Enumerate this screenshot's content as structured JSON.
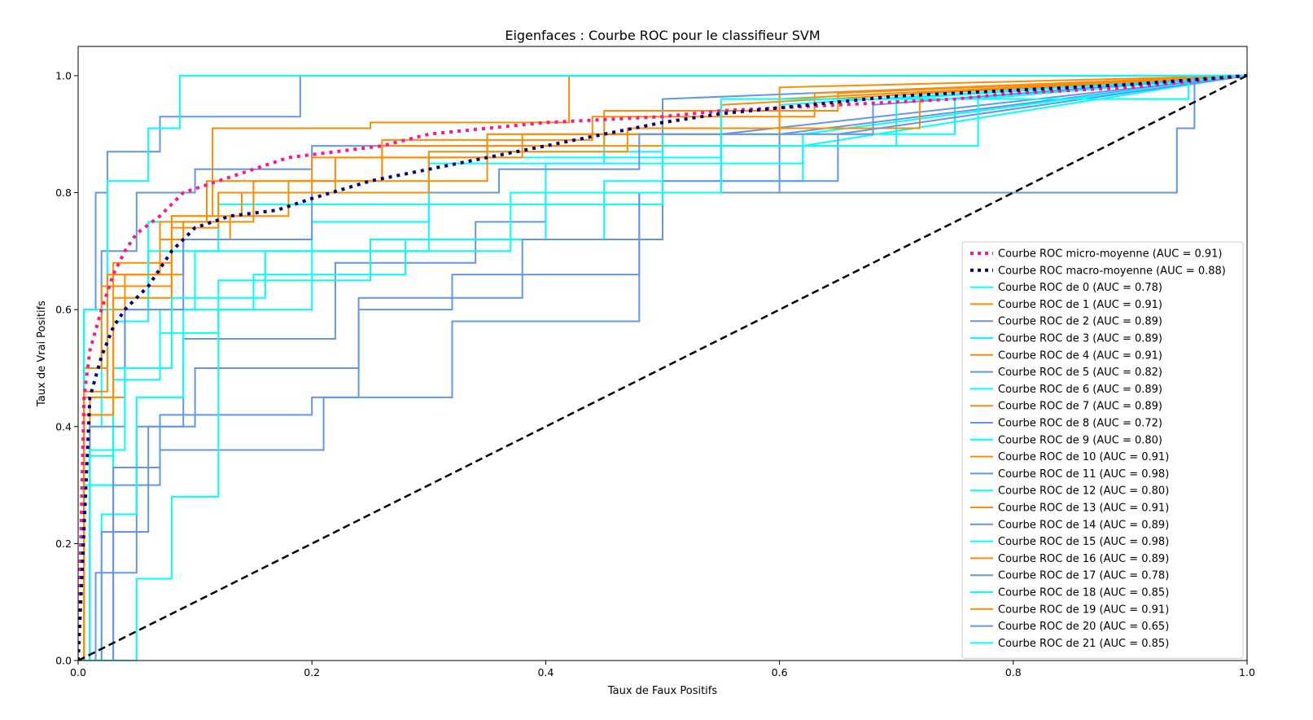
{
  "chart_data": {
    "type": "line",
    "title": "Eigenfaces : Courbe ROC pour le classifieur SVM",
    "xlabel": "Taux de Faux Positifs",
    "ylabel": "Taux de Vrai Positifs",
    "xlim": [
      0.0,
      1.0
    ],
    "ylim": [
      0.0,
      1.05
    ],
    "xticks": [
      "0.0",
      "0.2",
      "0.4",
      "0.6",
      "0.8",
      "1.0"
    ],
    "yticks": [
      "0.0",
      "0.2",
      "0.4",
      "0.6",
      "0.8",
      "1.0"
    ],
    "grid": false,
    "legend_position": "center-right",
    "baseline": {
      "x": [
        0,
        1
      ],
      "y": [
        0,
        1
      ],
      "color": "#000000"
    },
    "colors": {
      "micro": "#ff1493",
      "macro": "#000080",
      "cycle": [
        "#00ffff",
        "#ff8c00",
        "#6495ed"
      ]
    },
    "series": [
      {
        "name": "Courbe ROC micro-moyenne (AUC = 0.91)",
        "color": "#ff1493",
        "style": "dotted",
        "x": [
          0,
          0.005,
          0.01,
          0.02,
          0.03,
          0.04,
          0.05,
          0.07,
          0.09,
          0.12,
          0.15,
          0.18,
          0.22,
          0.26,
          0.3,
          0.35,
          0.4,
          0.45,
          0.5,
          0.55,
          0.6,
          0.65,
          0.7,
          0.75,
          0.8,
          0.85,
          0.9,
          0.95,
          1.0
        ],
        "y": [
          0,
          0.45,
          0.53,
          0.6,
          0.66,
          0.7,
          0.73,
          0.76,
          0.8,
          0.82,
          0.84,
          0.86,
          0.87,
          0.88,
          0.9,
          0.91,
          0.92,
          0.925,
          0.93,
          0.94,
          0.945,
          0.95,
          0.955,
          0.96,
          0.97,
          0.975,
          0.98,
          0.99,
          1.0
        ]
      },
      {
        "name": "Courbe ROC macro-moyenne (AUC = 0.88)",
        "color": "#000080",
        "style": "dotted",
        "x": [
          0,
          0.01,
          0.02,
          0.03,
          0.04,
          0.06,
          0.08,
          0.1,
          0.13,
          0.17,
          0.2,
          0.25,
          0.3,
          0.35,
          0.4,
          0.45,
          0.5,
          0.55,
          0.6,
          0.65,
          0.7,
          0.8,
          0.9,
          1.0
        ],
        "y": [
          0,
          0.45,
          0.52,
          0.57,
          0.6,
          0.64,
          0.7,
          0.74,
          0.76,
          0.77,
          0.79,
          0.82,
          0.84,
          0.86,
          0.88,
          0.9,
          0.92,
          0.935,
          0.945,
          0.955,
          0.965,
          0.975,
          0.985,
          1.0
        ]
      },
      {
        "name": "Courbe ROC de 0 (AUC = 0.78)",
        "color": "#00ffff",
        "x": [
          0,
          0.01,
          0.01,
          0.03,
          0.03,
          0.07,
          0.07,
          0.1,
          0.1,
          0.2,
          0.2,
          0.3,
          0.3,
          0.45,
          0.45,
          0.6,
          0.6,
          1
        ],
        "y": [
          0,
          0,
          0.3,
          0.3,
          0.5,
          0.5,
          0.6,
          0.6,
          0.7,
          0.7,
          0.75,
          0.75,
          0.85,
          0.85,
          0.9,
          0.9,
          0.95,
          1
        ]
      },
      {
        "name": "Courbe ROC de 1 (AUC = 0.91)",
        "color": "#ff8c00",
        "x": [
          0,
          0.005,
          0.005,
          0.03,
          0.03,
          0.08,
          0.08,
          0.115,
          0.115,
          0.25,
          0.25,
          0.42,
          0.42,
          1
        ],
        "y": [
          0,
          0,
          0.45,
          0.45,
          0.68,
          0.68,
          0.76,
          0.76,
          0.91,
          0.91,
          0.92,
          0.92,
          1.0,
          1
        ]
      },
      {
        "name": "Courbe ROC de 2 (AUC = 0.89)",
        "color": "#6495ed",
        "x": [
          0,
          0.005,
          0.005,
          0.02,
          0.02,
          0.05,
          0.05,
          0.1,
          0.1,
          0.2,
          0.2,
          0.35,
          0.35,
          0.5,
          0.5,
          1
        ],
        "y": [
          0,
          0,
          0.5,
          0.5,
          0.7,
          0.7,
          0.8,
          0.8,
          0.84,
          0.84,
          0.88,
          0.88,
          0.9,
          0.9,
          0.96,
          1
        ]
      },
      {
        "name": "Courbe ROC de 3 (AUC = 0.89)",
        "color": "#00ffff",
        "x": [
          0,
          0.01,
          0.01,
          0.02,
          0.02,
          0.06,
          0.06,
          0.15,
          0.15,
          0.3,
          0.3,
          0.5,
          0.5,
          0.75,
          0.75,
          1
        ],
        "y": [
          0,
          0,
          0.4,
          0.4,
          0.6,
          0.6,
          0.75,
          0.75,
          0.8,
          0.8,
          0.87,
          0.87,
          0.9,
          0.9,
          0.96,
          1
        ]
      },
      {
        "name": "Courbe ROC de 4 (AUC = 0.91)",
        "color": "#ff8c00",
        "x": [
          0,
          0.005,
          0.005,
          0.025,
          0.025,
          0.07,
          0.07,
          0.12,
          0.12,
          0.2,
          0.2,
          0.35,
          0.35,
          0.6,
          0.6,
          1
        ],
        "y": [
          0,
          0,
          0.5,
          0.5,
          0.66,
          0.66,
          0.72,
          0.72,
          0.8,
          0.8,
          0.86,
          0.86,
          0.9,
          0.9,
          0.98,
          1
        ]
      },
      {
        "name": "Courbe ROC de 5 (AUC = 0.82)",
        "color": "#6495ed",
        "x": [
          0,
          0.015,
          0.015,
          0.05,
          0.05,
          0.09,
          0.09,
          0.22,
          0.22,
          0.34,
          0.34,
          0.4,
          0.4,
          0.55,
          0.55,
          1
        ],
        "y": [
          0,
          0,
          0.15,
          0.15,
          0.4,
          0.4,
          0.55,
          0.55,
          0.68,
          0.68,
          0.75,
          0.75,
          0.8,
          0.8,
          0.9,
          1
        ]
      },
      {
        "name": "Courbe ROC de 6 (AUC = 0.89)",
        "color": "#00ffff",
        "x": [
          0,
          0.01,
          0.01,
          0.03,
          0.03,
          0.06,
          0.06,
          0.12,
          0.12,
          0.3,
          0.3,
          0.55,
          0.55,
          0.7,
          0.7,
          1
        ],
        "y": [
          0,
          0,
          0.35,
          0.35,
          0.58,
          0.58,
          0.7,
          0.7,
          0.78,
          0.78,
          0.86,
          0.86,
          0.88,
          0.88,
          0.96,
          1
        ]
      },
      {
        "name": "Courbe ROC de 7 (AUC = 0.89)",
        "color": "#ff8c00",
        "x": [
          0,
          0.01,
          0.01,
          0.03,
          0.03,
          0.08,
          0.08,
          0.13,
          0.13,
          0.18,
          0.18,
          0.35,
          0.35,
          0.6,
          0.6,
          1
        ],
        "y": [
          0,
          0,
          0.42,
          0.42,
          0.6,
          0.6,
          0.72,
          0.72,
          0.76,
          0.76,
          0.82,
          0.82,
          0.88,
          0.88,
          0.96,
          1
        ]
      },
      {
        "name": "Courbe ROC de 8 (AUC = 0.72)",
        "color": "#6495ed",
        "x": [
          0,
          0.03,
          0.03,
          0.07,
          0.07,
          0.21,
          0.21,
          0.24,
          0.24,
          0.32,
          0.32,
          0.48,
          0.48,
          0.6,
          0.6,
          1
        ],
        "y": [
          0,
          0,
          0.3,
          0.3,
          0.36,
          0.36,
          0.45,
          0.45,
          0.6,
          0.6,
          0.66,
          0.66,
          0.8,
          0.8,
          0.9,
          1
        ]
      },
      {
        "name": "Courbe ROC de 9 (AUC = 0.80)",
        "color": "#00ffff",
        "x": [
          0,
          0.005,
          0.005,
          0.03,
          0.03,
          0.07,
          0.07,
          0.12,
          0.12,
          0.25,
          0.25,
          0.4,
          0.4,
          0.62,
          0.62,
          1
        ],
        "y": [
          0,
          0,
          0.3,
          0.3,
          0.48,
          0.48,
          0.56,
          0.56,
          0.65,
          0.65,
          0.72,
          0.72,
          0.85,
          0.85,
          0.9,
          1
        ]
      },
      {
        "name": "Courbe ROC de 10 (AUC = 0.91)",
        "color": "#ff8c00",
        "x": [
          0,
          0.01,
          0.01,
          0.04,
          0.04,
          0.09,
          0.09,
          0.15,
          0.15,
          0.26,
          0.26,
          0.45,
          0.45,
          0.65,
          0.65,
          1
        ],
        "y": [
          0,
          0,
          0.45,
          0.45,
          0.66,
          0.66,
          0.75,
          0.75,
          0.82,
          0.82,
          0.88,
          0.88,
          0.94,
          0.94,
          0.97,
          1
        ]
      },
      {
        "name": "Courbe ROC de 11 (AUC = 0.98)",
        "color": "#6495ed",
        "x": [
          0,
          0.005,
          0.005,
          0.015,
          0.015,
          0.025,
          0.025,
          0.07,
          0.07,
          0.19,
          0.19,
          1
        ],
        "y": [
          0,
          0,
          0.6,
          0.6,
          0.8,
          0.8,
          0.87,
          0.87,
          0.93,
          0.93,
          1.0,
          1
        ]
      },
      {
        "name": "Courbe ROC de 12 (AUC = 0.80)",
        "color": "#00ffff",
        "x": [
          0,
          0.02,
          0.02,
          0.05,
          0.05,
          0.09,
          0.09,
          0.15,
          0.15,
          0.28,
          0.28,
          0.45,
          0.45,
          0.62,
          0.62,
          1
        ],
        "y": [
          0,
          0,
          0.25,
          0.25,
          0.45,
          0.45,
          0.6,
          0.6,
          0.66,
          0.66,
          0.72,
          0.72,
          0.82,
          0.82,
          0.88,
          1
        ]
      },
      {
        "name": "Courbe ROC de 13 (AUC = 0.91)",
        "color": "#ff8c00",
        "x": [
          0,
          0.005,
          0.005,
          0.02,
          0.02,
          0.08,
          0.08,
          0.14,
          0.14,
          0.22,
          0.22,
          0.38,
          0.38,
          0.55,
          0.55,
          1
        ],
        "y": [
          0,
          0,
          0.5,
          0.5,
          0.64,
          0.64,
          0.76,
          0.76,
          0.8,
          0.8,
          0.86,
          0.86,
          0.9,
          0.9,
          0.95,
          1
        ]
      },
      {
        "name": "Courbe ROC de 14 (AUC = 0.89)",
        "color": "#6495ed",
        "x": [
          0,
          0.01,
          0.01,
          0.04,
          0.04,
          0.09,
          0.09,
          0.2,
          0.2,
          0.36,
          0.36,
          0.48,
          0.48,
          0.68,
          0.68,
          1
        ],
        "y": [
          0,
          0,
          0.4,
          0.4,
          0.6,
          0.6,
          0.72,
          0.72,
          0.8,
          0.8,
          0.84,
          0.84,
          0.9,
          0.9,
          0.95,
          1
        ]
      },
      {
        "name": "Courbe ROC de 15 (AUC = 0.98)",
        "color": "#00ffff",
        "x": [
          0,
          0.005,
          0.005,
          0.025,
          0.025,
          0.06,
          0.06,
          0.087,
          0.087,
          1
        ],
        "y": [
          0,
          0,
          0.6,
          0.6,
          0.82,
          0.82,
          0.91,
          0.91,
          1.0,
          1
        ]
      },
      {
        "name": "Courbe ROC de 16 (AUC = 0.89)",
        "color": "#ff8c00",
        "x": [
          0,
          0.005,
          0.005,
          0.03,
          0.03,
          0.08,
          0.08,
          0.12,
          0.12,
          0.3,
          0.3,
          0.47,
          0.47,
          0.72,
          0.72,
          1
        ],
        "y": [
          0,
          0,
          0.42,
          0.42,
          0.62,
          0.62,
          0.74,
          0.74,
          0.8,
          0.8,
          0.87,
          0.87,
          0.91,
          0.91,
          0.97,
          1
        ]
      },
      {
        "name": "Courbe ROC de 17 (AUC = 0.78)",
        "color": "#6495ed",
        "x": [
          0,
          0.02,
          0.02,
          0.06,
          0.06,
          0.1,
          0.1,
          0.24,
          0.24,
          0.38,
          0.38,
          0.5,
          0.5,
          0.65,
          0.65,
          1
        ],
        "y": [
          0,
          0,
          0.22,
          0.22,
          0.4,
          0.4,
          0.5,
          0.5,
          0.62,
          0.62,
          0.72,
          0.72,
          0.82,
          0.82,
          0.9,
          1
        ]
      },
      {
        "name": "Courbe ROC de 18 (AUC = 0.85)",
        "color": "#00ffff",
        "x": [
          0,
          0.01,
          0.01,
          0.04,
          0.04,
          0.08,
          0.08,
          0.16,
          0.16,
          0.3,
          0.3,
          0.5,
          0.5,
          0.77,
          0.77,
          1
        ],
        "y": [
          0,
          0,
          0.36,
          0.36,
          0.5,
          0.5,
          0.62,
          0.62,
          0.7,
          0.7,
          0.78,
          0.78,
          0.88,
          0.88,
          0.96,
          1
        ]
      },
      {
        "name": "Courbe ROC de 19 (AUC = 0.91)",
        "color": "#ff8c00",
        "x": [
          0,
          0.005,
          0.005,
          0.025,
          0.025,
          0.07,
          0.07,
          0.11,
          0.11,
          0.26,
          0.26,
          0.44,
          0.44,
          0.63,
          0.63,
          1
        ],
        "y": [
          0,
          0,
          0.46,
          0.46,
          0.66,
          0.66,
          0.75,
          0.75,
          0.82,
          0.82,
          0.89,
          0.89,
          0.93,
          0.93,
          0.97,
          1
        ]
      },
      {
        "name": "Courbe ROC de 20 (AUC = 0.65)",
        "color": "#6495ed",
        "x": [
          0,
          0.03,
          0.03,
          0.07,
          0.07,
          0.2,
          0.2,
          0.32,
          0.32,
          0.48,
          0.48,
          0.94,
          0.94,
          0.955,
          0.955,
          1
        ],
        "y": [
          0,
          0,
          0.33,
          0.33,
          0.42,
          0.42,
          0.45,
          0.45,
          0.58,
          0.58,
          0.8,
          0.8,
          0.91,
          0.91,
          1.0,
          1
        ]
      },
      {
        "name": "Courbe ROC de 21 (AUC = 0.85)",
        "color": "#00ffff",
        "x": [
          0,
          0.05,
          0.05,
          0.08,
          0.08,
          0.12,
          0.12,
          0.2,
          0.2,
          0.37,
          0.37,
          0.55,
          0.55,
          0.95,
          0.95,
          1
        ],
        "y": [
          0,
          0,
          0.14,
          0.14,
          0.28,
          0.28,
          0.6,
          0.6,
          0.7,
          0.7,
          0.8,
          0.8,
          0.96,
          0.96,
          1.0,
          1
        ]
      }
    ]
  }
}
